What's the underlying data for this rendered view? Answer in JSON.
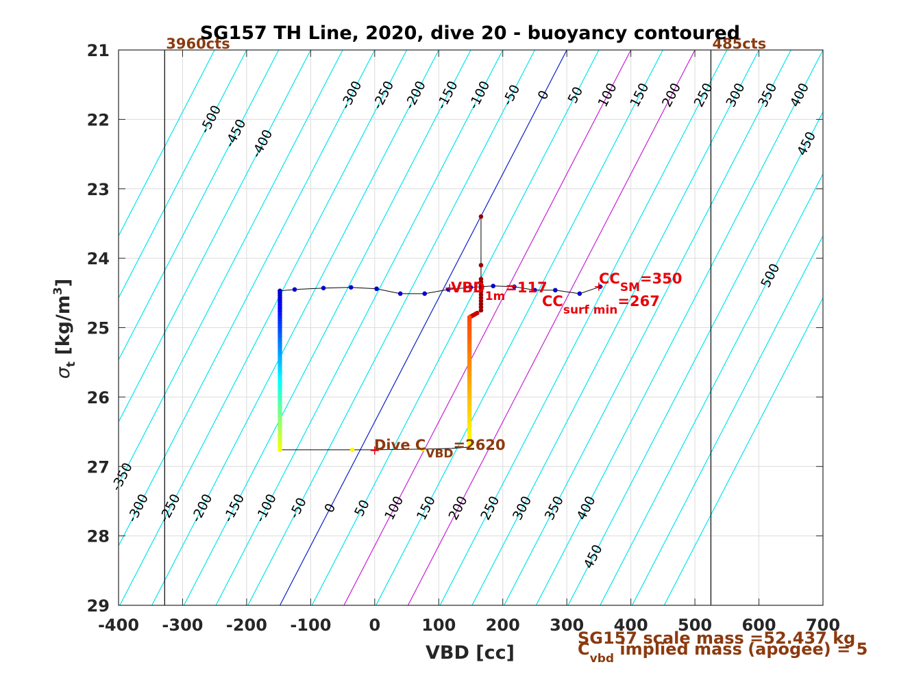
{
  "chart_data": {
    "type": "scatter",
    "title": "SG157 TH Line, 2020, dive 20 - buoyancy contoured",
    "xlabel": "VBD [cc]",
    "ylabel": {
      "sym": "σ",
      "sub": "t",
      "main": " [kg/m",
      "sup": "3",
      "end": "]"
    },
    "xlim": [
      -400,
      700
    ],
    "ylim": [
      21,
      29
    ],
    "y_reversed": true,
    "grid": true,
    "xticks": [
      "-400",
      "-300",
      "-200",
      "-100",
      "0",
      "100",
      "200",
      "300",
      "400",
      "500",
      "600",
      "700"
    ],
    "yticks": [
      "21",
      "22",
      "23",
      "24",
      "25",
      "26",
      "27",
      "28",
      "29"
    ],
    "buoyancy_contours": {
      "slope_cc_per_kgm3": 56,
      "values": [
        -550,
        -500,
        -450,
        -400,
        -350,
        -300,
        -250,
        -200,
        -150,
        -100,
        -50,
        0,
        50,
        100,
        150,
        200,
        250,
        300,
        350,
        400,
        450,
        500,
        550,
        600
      ],
      "colors": {
        "default": "#00e5ee",
        "zero": "#0a1ec8",
        "magenta": "#c71fd6"
      },
      "magenta_values": [
        100,
        200
      ],
      "zero_intercept_vbd_at_sigma21": 300,
      "top_labels": [
        "-500",
        "-450",
        "-400",
        "-300",
        "-250",
        "-200",
        "-150",
        "-100",
        "-50",
        "0",
        "50",
        "100",
        "150",
        "200",
        "250",
        "300",
        "350",
        "400",
        "450",
        "500"
      ],
      "bottom_labels": [
        "-350",
        "-300",
        "-250",
        "-200",
        "-150",
        "-100",
        "-50",
        "0",
        "50",
        "100",
        "150",
        "200",
        "250",
        "300",
        "350",
        "400",
        "450"
      ]
    },
    "vbd_limits": [
      {
        "vbd": -328,
        "label": "3960cts"
      },
      {
        "vbd": 525,
        "label": "485cts"
      }
    ],
    "dive_profile": [
      [
        166,
        23.4
      ],
      [
        166,
        24.1
      ],
      [
        166,
        24.3
      ],
      [
        167,
        24.45
      ],
      [
        166,
        24.6
      ],
      [
        165,
        24.75
      ],
      [
        160,
        24.79
      ],
      [
        155,
        24.82
      ],
      [
        150,
        24.84
      ],
      [
        148,
        25.0
      ],
      [
        148,
        25.4
      ],
      [
        148,
        25.8
      ],
      [
        148,
        26.2
      ],
      [
        148,
        26.5
      ],
      [
        148,
        26.72
      ],
      [
        120,
        26.74
      ],
      [
        75,
        26.75
      ],
      [
        0,
        26.76
      ],
      [
        -35,
        26.76
      ],
      [
        -148,
        26.76
      ],
      [
        -148,
        26.6
      ],
      [
        -148,
        26.2
      ],
      [
        -148,
        25.8
      ],
      [
        -148,
        25.4
      ],
      [
        -148,
        25.0
      ],
      [
        -148,
        24.7
      ],
      [
        -148,
        24.47
      ]
    ],
    "climb_profile": [
      [
        -148,
        24.47
      ],
      [
        -125,
        24.45
      ],
      [
        -80,
        24.43
      ],
      [
        -37,
        24.42
      ],
      [
        3,
        24.44
      ],
      [
        40,
        24.51
      ],
      [
        78,
        24.51
      ],
      [
        115,
        24.45
      ],
      [
        150,
        24.42
      ],
      [
        185,
        24.4
      ],
      [
        218,
        24.41
      ],
      [
        250,
        24.46
      ],
      [
        282,
        24.46
      ],
      [
        320,
        24.51
      ],
      [
        352,
        24.41
      ]
    ],
    "markers": [
      {
        "vbd": 117,
        "sigma": 24.43
      },
      {
        "vbd": 350,
        "sigma": 24.41
      },
      {
        "vbd": 0,
        "sigma": 26.77
      }
    ],
    "annotations": {
      "vbd1m": {
        "base": "VBD",
        "sub": "1m",
        "value": "=117"
      },
      "cc_sm": {
        "base": "CC",
        "sub": "SM",
        "value": "=350"
      },
      "cc_surf_min": {
        "base": "CC",
        "sub": "surf min",
        "value": "=267"
      },
      "dive_cvbd": {
        "base": "Dive C",
        "sub": "VBD",
        "value": "=2620"
      }
    },
    "footer": {
      "line1": "SG157 scale mass =52.437 kg",
      "line2_base": "C",
      "line2_sub": "vbd",
      "line2_rest": " implied mass (apogee) = 5"
    }
  }
}
